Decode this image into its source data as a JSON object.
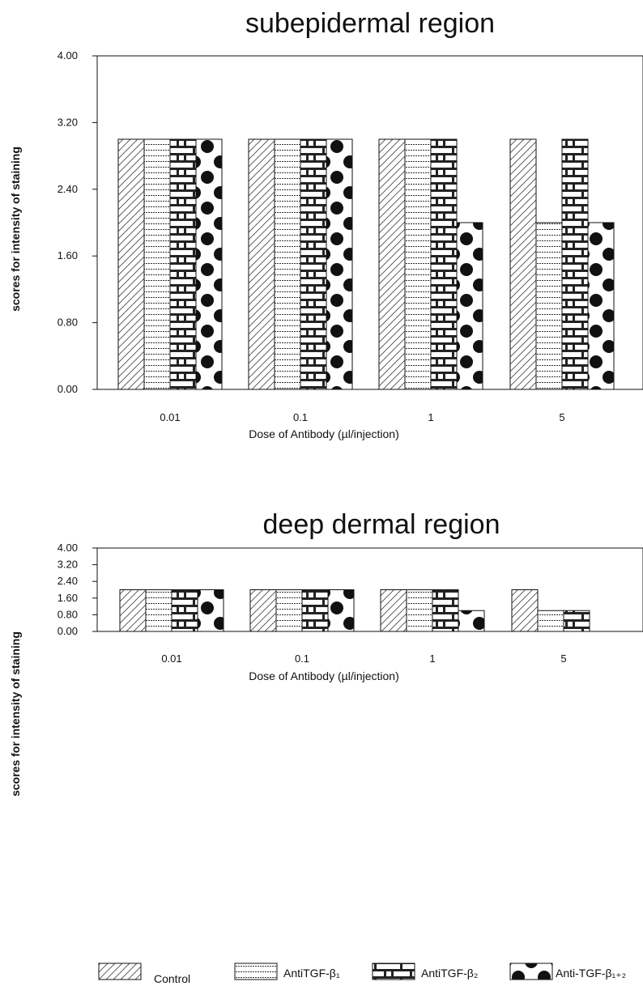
{
  "figure": {
    "legend_position": "bottom",
    "legend": [
      {
        "key": "control",
        "label": "Control",
        "pattern": "diagonal"
      },
      {
        "key": "tgfb1",
        "label": "AntiTGF-β₁",
        "pattern": "horizontal-lines"
      },
      {
        "key": "tgfb2",
        "label": "AntiTGF-β₂",
        "pattern": "brick"
      },
      {
        "key": "tgfb12",
        "label": "Anti-TGF-β₁₊₂",
        "pattern": "dots"
      }
    ],
    "colors": {
      "ink": "#111111",
      "background": "#ffffff"
    }
  },
  "chart_data": [
    {
      "type": "bar",
      "title": "subepidermal region",
      "xlabel": "Dose of Antibody (µl/injection)",
      "ylabel": "scores for intensity of staining",
      "ylim": [
        0,
        4
      ],
      "yticks": [
        "0.00",
        "0.80",
        "1.60",
        "2.40",
        "3.20",
        "4.00"
      ],
      "ytick_values": [
        0,
        0.8,
        1.6,
        2.4,
        3.2,
        4.0
      ],
      "categories": [
        "0.01",
        "0.1",
        "1",
        "5"
      ],
      "grid": false,
      "series": [
        {
          "name": "Control",
          "values": [
            3,
            3,
            3,
            3
          ]
        },
        {
          "name": "AntiTGF-β₁",
          "values": [
            3,
            3,
            3,
            2
          ]
        },
        {
          "name": "AntiTGF-β₂",
          "values": [
            3,
            3,
            3,
            3
          ]
        },
        {
          "name": "Anti-TGF-β₁₊₂",
          "values": [
            3,
            3,
            2,
            2
          ]
        }
      ]
    },
    {
      "type": "bar",
      "title": "deep dermal region",
      "xlabel": "Dose of Antibody (µl/injection)",
      "ylabel": "scores for intensity of staining",
      "ylim": [
        0,
        4
      ],
      "yticks": [
        "0.00",
        "0.80",
        "1.60",
        "2.40",
        "3.20",
        "4.00"
      ],
      "ytick_values": [
        0,
        0.8,
        1.6,
        2.4,
        3.2,
        4.0
      ],
      "categories": [
        "0.01",
        "0.1",
        "1",
        "5"
      ],
      "grid": false,
      "series": [
        {
          "name": "Control",
          "values": [
            2,
            2,
            2,
            2
          ]
        },
        {
          "name": "AntiTGF-β₁",
          "values": [
            2,
            2,
            2,
            1
          ]
        },
        {
          "name": "AntiTGF-β₂",
          "values": [
            2,
            2,
            2,
            1
          ]
        },
        {
          "name": "Anti-TGF-β₁₊₂",
          "values": [
            2,
            2,
            1,
            0
          ]
        }
      ]
    }
  ]
}
